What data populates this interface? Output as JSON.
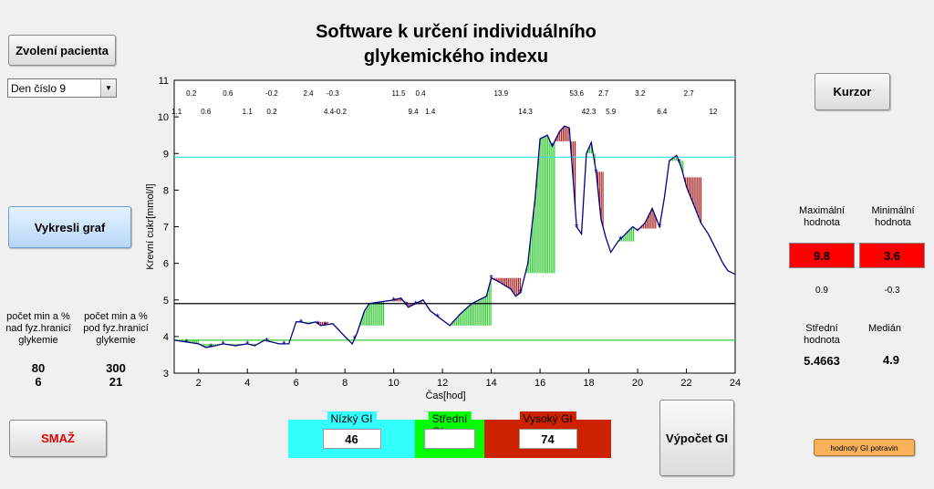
{
  "title": {
    "line1": "Software k určení individuálního",
    "line2": "glykemického indexu"
  },
  "buttons": {
    "select_patient": "Zvolení pacienta",
    "draw_graph": "Vykresli graf",
    "delete": "SMAŽ",
    "cursor": "Kurzor",
    "compute_gi": "Výpočet GI",
    "food_gi": "hodnoty GI potravin"
  },
  "day_select": {
    "value": "Den číslo 9"
  },
  "left_stats": {
    "above_label": [
      "počet min a %",
      "nad fyz.hranicí",
      "glykemie"
    ],
    "below_label": [
      "počet min a %",
      "pod fyz.hranicí",
      "glykemie"
    ],
    "above_min": "80",
    "above_pct": "6",
    "below_min": "300",
    "below_pct": "21"
  },
  "right_stats": {
    "max_label": [
      "Maximální",
      "hodnota"
    ],
    "min_label": [
      "Minimální",
      "hodnota"
    ],
    "max_value": "9.8",
    "min_value": "3.6",
    "max_sub": "0.9",
    "min_sub": "-0.3",
    "mean_label": [
      "Střední",
      "hodnota"
    ],
    "mean_value": "5.4663",
    "median_label": "Medián",
    "median_value": "4.9"
  },
  "gi_panels": {
    "low": {
      "label": "Nízký GI",
      "value": "46",
      "color": "#33ffff"
    },
    "mid": {
      "label": "Střední GI",
      "value": "",
      "color": "#00ff00"
    },
    "high": {
      "label": "Vysoký GI",
      "value": "74",
      "color": "#cc2200"
    }
  },
  "chart_data": {
    "type": "line",
    "xlabel": "Čas[hod]",
    "ylabel": "Krevní cukr[mmol/l]",
    "xlim": [
      1,
      24
    ],
    "ylim": [
      3,
      11
    ],
    "xticks": [
      2,
      4,
      6,
      8,
      10,
      12,
      14,
      16,
      18,
      20,
      22,
      24
    ],
    "yticks": [
      3,
      4,
      5,
      6,
      7,
      8,
      9,
      10,
      11
    ],
    "threshold_lines": [
      {
        "y": 8.9,
        "color": "#40e0e0"
      },
      {
        "y": 4.9,
        "color": "#000000"
      },
      {
        "y": 3.9,
        "color": "#33cc33"
      }
    ],
    "series": [
      {
        "color": "#000080",
        "x": [
          1,
          1.5,
          2,
          2.3,
          2.7,
          3,
          3.5,
          4,
          4.3,
          4.7,
          5,
          5.3,
          5.7,
          6,
          6.2,
          6.5,
          6.8,
          7,
          7.5,
          8,
          8.3,
          8.5,
          8.8,
          9,
          9.5,
          10,
          10.3,
          10.6,
          10.9,
          11.2,
          11.5,
          11.9,
          12.3,
          12.7,
          13.2,
          13.8,
          14,
          14.3,
          14.8,
          15,
          15.2,
          15.5,
          15.8,
          16,
          16.3,
          16.5,
          16.8,
          17,
          17.2,
          17.5,
          17.7,
          17.9,
          18.1,
          18.3,
          18.5,
          18.7,
          18.9,
          19,
          19.2,
          19.5,
          19.8,
          20,
          20.3,
          20.6,
          20.9,
          21.1,
          21.3,
          21.6,
          21.8,
          22,
          22.3,
          22.6,
          22.9,
          23.2,
          23.5,
          23.7,
          24
        ],
        "y": [
          3.9,
          3.85,
          3.8,
          3.7,
          3.75,
          3.8,
          3.75,
          3.8,
          3.75,
          3.9,
          3.85,
          3.8,
          3.8,
          4.4,
          4.4,
          4.35,
          4.4,
          4.3,
          4.35,
          4.0,
          3.8,
          4.1,
          4.7,
          4.9,
          4.95,
          5.0,
          5.05,
          4.8,
          4.9,
          5.0,
          4.7,
          4.5,
          4.3,
          4.6,
          4.9,
          5.1,
          5.6,
          5.5,
          5.3,
          5.1,
          5.2,
          6.0,
          7.8,
          9.4,
          9.5,
          9.2,
          9.6,
          9.75,
          9.7,
          7.0,
          6.8,
          9.0,
          9.3,
          8.5,
          7.2,
          6.7,
          6.3,
          6.4,
          6.6,
          6.8,
          7.0,
          6.9,
          7.1,
          7.5,
          7.0,
          7.8,
          8.8,
          8.95,
          8.6,
          8.1,
          7.6,
          7.1,
          6.8,
          6.4,
          6.0,
          5.8,
          5.7
        ]
      }
    ],
    "markers_x": [
      1.5,
      2.5,
      3,
      4,
      4.8,
      5.5,
      6.2,
      6.9,
      7.2,
      8.4,
      10,
      10.5,
      10.9,
      11.8,
      14,
      15.2,
      16.5,
      17.5,
      18.3,
      19.3,
      20.9,
      21.7
    ],
    "annotations_top": [
      {
        "x": 1.7,
        "t": "0.2"
      },
      {
        "x": 3.2,
        "t": "0.6"
      },
      {
        "x": 5.0,
        "t": "-0.2"
      },
      {
        "x": 6.5,
        "t": "2.4"
      },
      {
        "x": 7.5,
        "t": "-0.3"
      },
      {
        "x": 10.2,
        "t": "11.5"
      },
      {
        "x": 11.1,
        "t": "0.4"
      },
      {
        "x": 14.4,
        "t": "13.9"
      },
      {
        "x": 17.5,
        "t": "53.6"
      },
      {
        "x": 18.6,
        "t": "2.7"
      },
      {
        "x": 20.1,
        "t": "3.2"
      },
      {
        "x": 22.1,
        "t": "2.7"
      }
    ],
    "annotations_bottom": [
      {
        "x": 1.1,
        "t": "1.1"
      },
      {
        "x": 2.3,
        "t": "0.6"
      },
      {
        "x": 4.0,
        "t": "1.1"
      },
      {
        "x": 5.0,
        "t": "0.2"
      },
      {
        "x": 7.6,
        "t": "4.4-0.2"
      },
      {
        "x": 10.8,
        "t": "9.4"
      },
      {
        "x": 11.5,
        "t": "1.4"
      },
      {
        "x": 15.4,
        "t": "14.3"
      },
      {
        "x": 18.0,
        "t": "42.3"
      },
      {
        "x": 18.9,
        "t": "5.9"
      },
      {
        "x": 21.0,
        "t": "6.4"
      },
      {
        "x": 23.1,
        "t": "12"
      }
    ],
    "fill_regions": [
      {
        "from": 1.0,
        "to": 2.0,
        "color": "#33cc33"
      },
      {
        "from": 2.0,
        "to": 4.5,
        "color": "#33cc33"
      },
      {
        "from": 6.0,
        "to": 6.8,
        "color": "#33cc33"
      },
      {
        "from": 6.8,
        "to": 7.3,
        "color": "#aa2222"
      },
      {
        "from": 8.6,
        "to": 9.6,
        "color": "#33cc33"
      },
      {
        "from": 9.6,
        "to": 10.5,
        "color": "#aa2222"
      },
      {
        "from": 10.5,
        "to": 11.2,
        "color": "#aa2222"
      },
      {
        "from": 12.3,
        "to": 14.0,
        "color": "#33cc33"
      },
      {
        "from": 14.0,
        "to": 15.2,
        "color": "#aa2222"
      },
      {
        "from": 15.4,
        "to": 16.6,
        "color": "#33cc33"
      },
      {
        "from": 16.6,
        "to": 17.5,
        "color": "#aa2222"
      },
      {
        "from": 17.9,
        "to": 18.3,
        "color": "#33cc33"
      },
      {
        "from": 18.3,
        "to": 18.6,
        "color": "#aa2222"
      },
      {
        "from": 19.2,
        "to": 19.9,
        "color": "#33cc33"
      },
      {
        "from": 19.9,
        "to": 20.8,
        "color": "#aa2222"
      },
      {
        "from": 21.3,
        "to": 21.9,
        "color": "#33cc33"
      },
      {
        "from": 21.9,
        "to": 22.6,
        "color": "#aa2222"
      }
    ]
  }
}
